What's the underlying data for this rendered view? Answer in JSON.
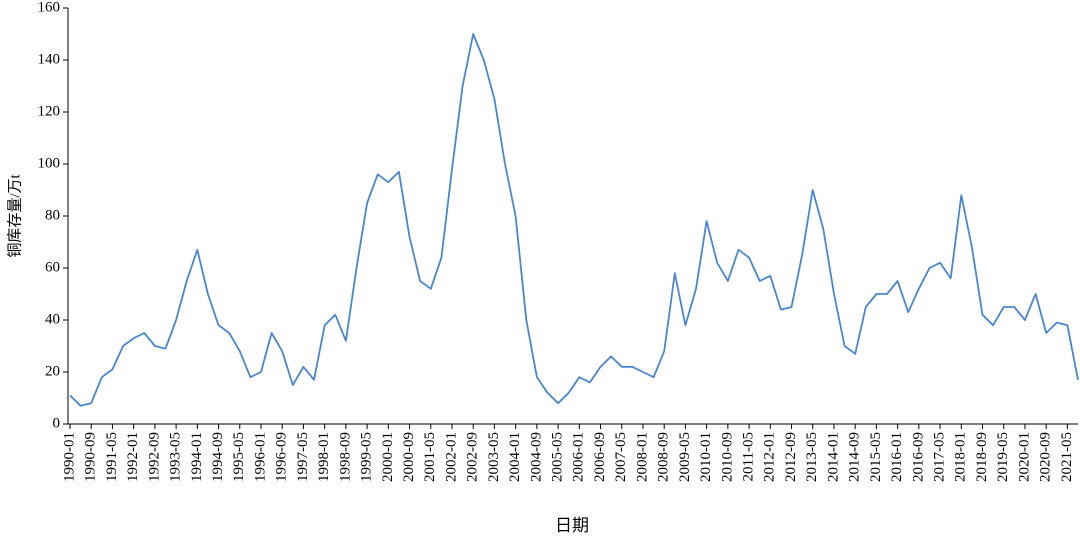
{
  "chart_data": {
    "type": "line",
    "y_label": "铜库存量/万t",
    "x_label": "日期",
    "categories": [
      "1990-01",
      null,
      "1990-09",
      null,
      "1991-05",
      null,
      "1992-01",
      null,
      "1992-09",
      null,
      "1993-05",
      null,
      "1994-01",
      null,
      "1994-09",
      null,
      "1995-05",
      null,
      "1996-01",
      null,
      "1996-09",
      null,
      "1997-05",
      null,
      "1998-01",
      null,
      "1998-09",
      null,
      "1999-05",
      null,
      "2000-01",
      null,
      "2000-09",
      null,
      "2001-05",
      null,
      "2002-01",
      null,
      "2002-09",
      null,
      "2003-05",
      null,
      "2004-01",
      null,
      "2004-09",
      null,
      "2005-05",
      null,
      "2006-01",
      null,
      "2006-09",
      null,
      "2007-05",
      null,
      "2008-01",
      null,
      "2008-09",
      null,
      "2009-05",
      null,
      "2010-01",
      null,
      "2010-09",
      null,
      "2011-05",
      null,
      "2012-01",
      null,
      "2012-09",
      null,
      "2013-05",
      null,
      "2014-01",
      null,
      "2014-09",
      null,
      "2015-05",
      null,
      "2016-01",
      null,
      "2016-09",
      null,
      "2017-05",
      null,
      "2018-01",
      null,
      "2018-09",
      null,
      "2019-05",
      null,
      "2020-01",
      null,
      "2020-09",
      null,
      "2021-05",
      null
    ],
    "series": [
      {
        "name": "铜库存量",
        "color": "#4a86d0",
        "values": [
          11,
          7,
          8,
          18,
          21,
          30,
          33,
          35,
          30,
          29,
          40,
          55,
          67,
          50,
          38,
          35,
          28,
          18,
          20,
          35,
          28,
          15,
          22,
          17,
          38,
          42,
          32,
          60,
          85,
          96,
          93,
          97,
          72,
          55,
          52,
          64,
          98,
          130,
          150,
          140,
          125,
          100,
          80,
          40,
          18,
          12,
          8,
          12,
          18,
          16,
          22,
          26,
          22,
          22,
          20,
          18,
          28,
          58,
          38,
          52,
          78,
          62,
          55,
          67,
          64,
          55,
          57,
          44,
          45,
          65,
          90,
          75,
          50,
          30,
          27,
          45,
          50,
          50,
          55,
          43,
          52,
          60,
          62,
          56,
          88,
          68,
          42,
          38,
          45,
          45,
          40,
          50,
          35,
          39,
          38,
          17
        ]
      }
    ],
    "ylim": [
      0,
      160
    ],
    "yticks": [
      0,
      20,
      40,
      60,
      80,
      100,
      120,
      140,
      160
    ],
    "grid": false
  }
}
